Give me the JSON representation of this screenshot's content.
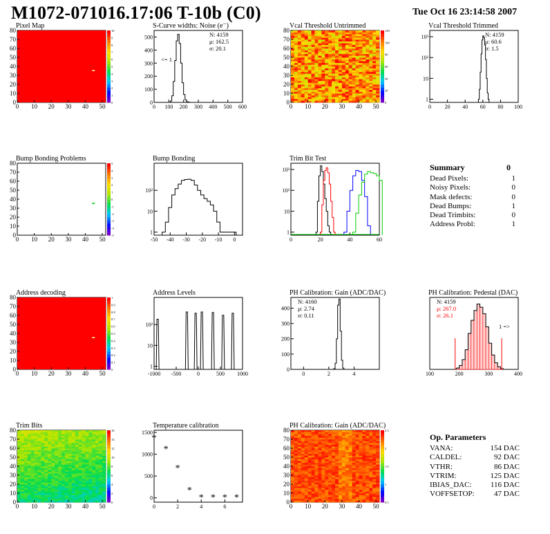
{
  "header": {
    "title": "M1072-071016.17:06 T-10b (C0)",
    "date": "Tue Oct 16 23:14:58 2007"
  },
  "summary": {
    "title": "Summary",
    "value": "0",
    "rows": [
      {
        "label": "Dead Pixels:",
        "value": "1"
      },
      {
        "label": "Noisy Pixels:",
        "value": "0"
      },
      {
        "label": "Mask defects:",
        "value": "0"
      },
      {
        "label": "Dead Bumps:",
        "value": "1"
      },
      {
        "label": "Dead Trimbits:",
        "value": "0"
      },
      {
        "label": "Address Probl:",
        "value": "1"
      }
    ]
  },
  "op_parameters": {
    "title": "Op. Parameters",
    "rows": [
      {
        "label": "VANA:",
        "value": "154 DAC"
      },
      {
        "label": "CALDEL:",
        "value": "92 DAC"
      },
      {
        "label": "VTHR:",
        "value": "86 DAC"
      },
      {
        "label": "VTRIM:",
        "value": "125 DAC"
      },
      {
        "label": "IBIAS_DAC:",
        "value": "116 DAC"
      },
      {
        "label": "VOFFSETOP:",
        "value": "47 DAC"
      }
    ]
  },
  "colors": {
    "red": "#ff0000",
    "blue": "#0000ff",
    "green": "#00cc00",
    "pedestal_hist": "#ff0000"
  },
  "chart_data": [
    {
      "id": "pixel-map",
      "type": "heatmap",
      "title": "Pixel Map",
      "xlim": [
        0,
        52
      ],
      "ylim": [
        0,
        80
      ],
      "xticks": [
        "0",
        "10",
        "20",
        "30",
        "40",
        "50"
      ],
      "yticks": [
        "0",
        "10",
        "20",
        "30",
        "40",
        "50",
        "60",
        "70",
        "80"
      ],
      "zticks": [
        "0",
        "1",
        "2",
        "3",
        "4",
        "5",
        "6",
        "7",
        "8",
        "9",
        "10"
      ],
      "fill": "uniform",
      "value": 10,
      "marked_cell": [
        44,
        35
      ]
    },
    {
      "id": "s-curve-widths",
      "type": "line",
      "title": "S-Curve widths: Noise (e⁻)",
      "xlim": [
        0,
        600
      ],
      "ylim": [
        0,
        550
      ],
      "xticks": [
        "0",
        "100",
        "200",
        "300",
        "400",
        "500",
        "600"
      ],
      "yticks": [
        "0",
        "100",
        "200",
        "300",
        "400",
        "500"
      ],
      "stats": [
        "N: 4159",
        "μ: 162.5",
        "σ: 20.1"
      ],
      "annotation": "<= 1",
      "x": [
        100,
        110,
        120,
        130,
        140,
        150,
        160,
        170,
        180,
        190,
        200,
        210,
        220,
        230,
        240
      ],
      "values": [
        0,
        10,
        50,
        160,
        320,
        470,
        520,
        450,
        300,
        150,
        60,
        20,
        5,
        2,
        0
      ]
    },
    {
      "id": "vcal-untrimmed",
      "type": "heatmap",
      "title": "Vcal Threshold Untrimmed",
      "xlim": [
        0,
        52
      ],
      "ylim": [
        0,
        80
      ],
      "xticks": [
        "0",
        "10",
        "20",
        "30",
        "40",
        "50"
      ],
      "yticks": [
        "0",
        "10",
        "20",
        "30",
        "40",
        "50",
        "60",
        "70",
        "80"
      ],
      "zticks": [
        "0",
        "20",
        "40",
        "60",
        "80",
        "100",
        "120"
      ],
      "fill": "noise"
    },
    {
      "id": "vcal-trimmed",
      "type": "line",
      "title": "Vcal Threshold Trimmed",
      "scale": "log",
      "xlim": [
        0,
        100
      ],
      "xticks": [
        "0",
        "20",
        "40",
        "60",
        "80",
        "100"
      ],
      "yticks": [
        "1",
        "10",
        "10²",
        "10³"
      ],
      "stats": [
        "N: 4159",
        "μ: 60.6",
        "σ:  1.5"
      ],
      "x": [
        55,
        56,
        57,
        58,
        59,
        60,
        61,
        62,
        63,
        64,
        65,
        66
      ],
      "values": [
        1,
        3,
        20,
        150,
        700,
        1100,
        900,
        400,
        80,
        10,
        2,
        1
      ]
    },
    {
      "id": "bump-bonding-problems",
      "type": "heatmap",
      "title": "Bump Bonding Problems",
      "xlim": [
        0,
        52
      ],
      "ylim": [
        0,
        80
      ],
      "xticks": [
        "0",
        "10",
        "20",
        "30",
        "40",
        "50"
      ],
      "yticks": [
        "0",
        "10",
        "20",
        "30",
        "40",
        "50",
        "60",
        "70",
        "80"
      ],
      "zticks": [
        "-5",
        "-4",
        "-3",
        "-2",
        "-1",
        "0",
        "1",
        "2",
        "3",
        "4",
        "5"
      ],
      "fill": "empty",
      "marked_cell": [
        44,
        35
      ]
    },
    {
      "id": "bump-bonding",
      "type": "line",
      "title": "Bump Bonding",
      "scale": "log",
      "xlim": [
        -50,
        5
      ],
      "xticks": [
        "-50",
        "-40",
        "-30",
        "-20",
        "-10",
        "0"
      ],
      "yticks": [
        "1",
        "10",
        "10²"
      ],
      "x": [
        -45,
        -43,
        -41,
        -39,
        -37,
        -35,
        -33,
        -31,
        -29,
        -27,
        -25,
        -23,
        -21,
        -19,
        -17,
        -15,
        -13,
        -11,
        -9,
        -1
      ],
      "values": [
        1,
        3,
        15,
        60,
        120,
        200,
        300,
        330,
        340,
        300,
        180,
        100,
        60,
        40,
        30,
        20,
        10,
        3,
        1,
        1
      ]
    },
    {
      "id": "trim-bit-test",
      "type": "line",
      "title": "Trim Bit Test",
      "scale": "log",
      "xlim": [
        0,
        60
      ],
      "xticks": [
        "0",
        "20",
        "40",
        "60"
      ],
      "yticks": [
        "1",
        "10",
        "10²",
        "10³"
      ],
      "series": [
        {
          "color": "#000000",
          "x": [
            17,
            18,
            19,
            20,
            21,
            22,
            23,
            24,
            25,
            26
          ],
          "values": [
            1,
            30,
            500,
            1500,
            800,
            200,
            40,
            10,
            2,
            1
          ]
        },
        {
          "color": "#ff0000",
          "x": [
            20,
            21,
            22,
            23,
            24,
            25,
            26,
            27,
            28,
            29
          ],
          "values": [
            1,
            20,
            300,
            900,
            1200,
            700,
            200,
            30,
            5,
            1
          ]
        },
        {
          "color": "#0000ff",
          "x": [
            36,
            38,
            40,
            42,
            44,
            46,
            48,
            50,
            52
          ],
          "values": [
            1,
            10,
            100,
            500,
            900,
            800,
            300,
            50,
            2
          ]
        },
        {
          "color": "#00cc00",
          "x": [
            42,
            44,
            46,
            48,
            50,
            52,
            54,
            56,
            58,
            60
          ],
          "values": [
            1,
            8,
            60,
            250,
            600,
            800,
            700,
            650,
            500,
            300
          ]
        }
      ]
    },
    {
      "id": "address-decoding",
      "type": "heatmap",
      "title": "Address decoding",
      "xlim": [
        0,
        52
      ],
      "ylim": [
        0,
        80
      ],
      "xticks": [
        "0",
        "10",
        "20",
        "30",
        "40",
        "50"
      ],
      "yticks": [
        "0",
        "10",
        "20",
        "30",
        "40",
        "50",
        "60",
        "70",
        "80"
      ],
      "zticks": [
        "0",
        "0.1",
        "0.2",
        "0.3",
        "0.4",
        "0.5",
        "0.6",
        "0.7",
        "0.8",
        "0.9",
        "1"
      ],
      "fill": "uniform",
      "value": 1,
      "marked_cell": [
        44,
        35
      ]
    },
    {
      "id": "address-levels",
      "type": "line",
      "title": "Address Levels",
      "scale": "log",
      "xlim": [
        -1000,
        1000
      ],
      "xticks": [
        "-1000",
        "-500",
        "0",
        "500",
        "1000"
      ],
      "yticks": [
        "1",
        "10",
        "10²"
      ],
      "peaks": [
        -920,
        -260,
        -60,
        80,
        330,
        560,
        780
      ],
      "heights": [
        180,
        400,
        350,
        400,
        380,
        280,
        350
      ]
    },
    {
      "id": "ph-gain-hist",
      "type": "line",
      "title": "PH Calibration: Gain (ADC/DAC)",
      "xlim": [
        -1,
        6
      ],
      "ylim": [
        0,
        470
      ],
      "xticks": [
        "0",
        "2",
        "4"
      ],
      "yticks": [
        "0",
        "100",
        "200",
        "300",
        "400"
      ],
      "stats": [
        "N: 4160",
        "μ: 2.74",
        "σ: 0.11"
      ],
      "x": [
        2.3,
        2.4,
        2.5,
        2.6,
        2.7,
        2.8,
        2.9,
        3.0,
        3.1,
        3.2
      ],
      "values": [
        0,
        5,
        40,
        200,
        420,
        460,
        250,
        60,
        8,
        0
      ]
    },
    {
      "id": "ph-pedestal",
      "type": "bar",
      "title": "PH Calibration: Pedestal (DAC)",
      "xlim": [
        100,
        400
      ],
      "ylim": [
        0,
        110
      ],
      "xticks": [
        "100",
        "200",
        "300",
        "400"
      ],
      "stats": [
        "N: 4159",
        "μ: 267.0",
        "σ: 26.1"
      ],
      "annotation": "1 =>",
      "x": [
        190,
        200,
        210,
        220,
        230,
        240,
        250,
        260,
        270,
        280,
        290,
        300,
        310,
        320,
        330,
        340
      ],
      "values": [
        2,
        6,
        15,
        30,
        55,
        75,
        90,
        100,
        95,
        85,
        65,
        40,
        22,
        10,
        4,
        1
      ]
    },
    {
      "id": "trim-bits",
      "type": "heatmap",
      "title": "Trim Bits",
      "xlim": [
        0,
        52
      ],
      "ylim": [
        0,
        80
      ],
      "xticks": [
        "0",
        "10",
        "20",
        "30",
        "40",
        "50"
      ],
      "yticks": [
        "0",
        "10",
        "20",
        "30",
        "40",
        "50",
        "60",
        "70",
        "80"
      ],
      "zticks": [
        "0",
        "2",
        "4",
        "6",
        "8",
        "10",
        "12",
        "14",
        "16"
      ],
      "fill": "trim"
    },
    {
      "id": "temperature-calibration",
      "type": "scatter",
      "title": "Temperature calibration",
      "xlim": [
        0,
        7.5
      ],
      "ylim": [
        -100,
        1550
      ],
      "xticks": [
        "0",
        "2",
        "4",
        "6"
      ],
      "yticks": [
        "0",
        "500",
        "1000",
        "1500"
      ],
      "x": [
        0,
        1,
        2,
        3,
        4,
        5,
        6,
        7
      ],
      "values": [
        1370,
        1110,
        680,
        170,
        0,
        0,
        0,
        0
      ]
    },
    {
      "id": "ph-gain-map",
      "type": "heatmap",
      "title": "PH Calibration: Gain (ADC/DAC)",
      "xlim": [
        0,
        52
      ],
      "ylim": [
        0,
        80
      ],
      "xticks": [
        "0",
        "10",
        "20",
        "30",
        "40",
        "50"
      ],
      "yticks": [
        "0",
        "10",
        "20",
        "30",
        "40",
        "50",
        "60",
        "70",
        "80"
      ],
      "zticks": [
        "0.5",
        "1",
        "1.5",
        "2",
        "2.5"
      ],
      "fill": "gain"
    }
  ]
}
